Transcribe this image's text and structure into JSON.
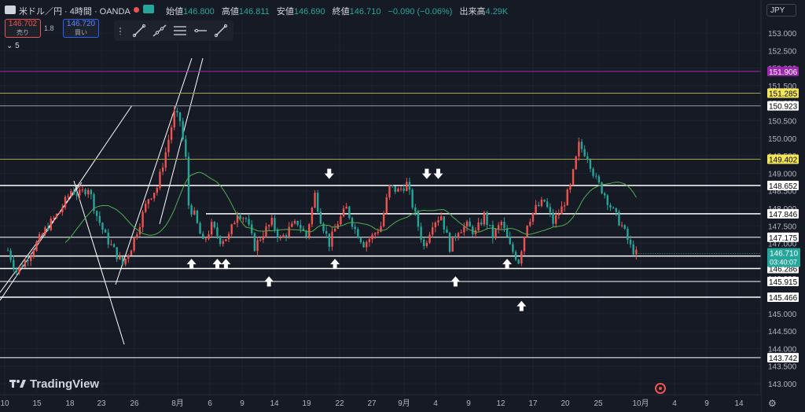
{
  "header": {
    "title": "米ドル／円 · 4時間 · OANDA",
    "open_label": "始値",
    "open_value": "146.800",
    "high_label": "高値",
    "high_value": "146.811",
    "low_label": "安値",
    "low_value": "146.690",
    "close_label": "終値",
    "close_value": "146.710",
    "change_value": "−0.090 (−0.06%)",
    "volume_label": "出来高",
    "volume_value": "4.29K",
    "status_color": "#ef5350",
    "flag_color": "#26a69a"
  },
  "trade": {
    "sell_price": "146.702",
    "sell_label": "売り",
    "spread": "1.8",
    "buy_price": "146.720",
    "buy_label": "買い"
  },
  "indicator_count": "5",
  "currency": "JPY",
  "toolbar": {
    "tools": [
      "trend-line-icon",
      "extended-line-icon",
      "horizontal-lines-icon",
      "ray-icon",
      "info-line-icon"
    ]
  },
  "branding": "TradingView",
  "colors": {
    "background": "#161a25",
    "up": "#ef5350",
    "down": "#26a69a",
    "ma": "#4caf50",
    "axis_text": "#b2b5be",
    "purple_level": "#9c27b0",
    "olive_level": "#a5a33c"
  },
  "chart_data": {
    "type": "candlestick",
    "symbol": "USDJPY",
    "timeframe": "4h",
    "x_ticks": [
      "10",
      "15",
      "18",
      "23",
      "26",
      "8月",
      "6",
      "9",
      "14",
      "19",
      "22",
      "27",
      "9月",
      "4",
      "9",
      "12",
      "17",
      "20",
      "25",
      "10月",
      "4",
      "9",
      "14"
    ],
    "y_axis": {
      "ticks": [
        153.0,
        152.5,
        152.0,
        151.5,
        151.0,
        150.5,
        150.0,
        149.5,
        149.0,
        148.5,
        148.0,
        147.5,
        147.0,
        146.5,
        146.0,
        145.5,
        145.0,
        144.5,
        144.0,
        143.5,
        143.0
      ],
      "range": [
        142.85,
        153.45
      ]
    },
    "horizontal_levels": [
      {
        "value": "151.906",
        "color": "#9c27b0",
        "label_bg": "#9c27b0",
        "label_color": "#ffffff"
      },
      {
        "value": "151.285",
        "color": "#a5a33c",
        "label_bg": "#f3e65b",
        "label_color": "#000000"
      },
      {
        "value": "150.923",
        "color": "#9598a1",
        "label_bg": "#ffffff",
        "label_color": "#000000"
      },
      {
        "value": "149.402",
        "color": "#a5a33c",
        "label_bg": "#f3e65b",
        "label_color": "#000000"
      },
      {
        "value": "148.652",
        "color": "#ffffff",
        "label_bg": "#ffffff",
        "label_color": "#000000"
      },
      {
        "value": "147.846",
        "color": "#ffffff",
        "label_bg": "#ffffff",
        "label_color": "#000000"
      },
      {
        "value": "147.175",
        "color": "#ffffff",
        "label_bg": "#ffffff",
        "label_color": "#000000"
      },
      {
        "value": "146.640",
        "color": "#ffffff",
        "label_bg": "#ffffff",
        "label_color": "#000000"
      },
      {
        "value": "146.286",
        "color": "#ffffff",
        "label_bg": "#ffffff",
        "label_color": "#000000"
      },
      {
        "value": "145.915",
        "color": "#ffffff",
        "label_bg": "#ffffff",
        "label_color": "#000000"
      },
      {
        "value": "145.466",
        "color": "#ffffff",
        "label_bg": "#ffffff",
        "label_color": "#000000"
      },
      {
        "value": "143.742",
        "color": "#ffffff",
        "label_bg": "#ffffff",
        "label_color": "#000000"
      }
    ],
    "current_price": {
      "value": "146.710",
      "countdown": "03:40:07",
      "color": "#26a69a"
    },
    "price_path": [
      [
        0,
        146.8
      ],
      [
        3,
        146.2
      ],
      [
        6,
        146.5
      ],
      [
        10,
        147.0
      ],
      [
        14,
        147.5
      ],
      [
        18,
        147.9
      ],
      [
        22,
        148.5
      ],
      [
        25,
        148.4
      ],
      [
        28,
        148.6
      ],
      [
        31,
        147.8
      ],
      [
        34,
        147.2
      ],
      [
        37,
        146.8
      ],
      [
        40,
        146.4
      ],
      [
        43,
        146.9
      ],
      [
        46,
        147.6
      ],
      [
        49,
        148.3
      ],
      [
        52,
        148.6
      ],
      [
        55,
        149.6
      ],
      [
        58,
        150.7
      ],
      [
        60,
        150.5
      ],
      [
        62,
        149.4
      ],
      [
        63,
        148.1
      ],
      [
        65,
        147.8
      ],
      [
        68,
        147.0
      ],
      [
        71,
        147.5
      ],
      [
        74,
        147.1
      ],
      [
        77,
        147.2
      ],
      [
        80,
        147.9
      ],
      [
        83,
        147.7
      ],
      [
        86,
        146.9
      ],
      [
        89,
        147.3
      ],
      [
        92,
        147.6
      ],
      [
        95,
        147.1
      ],
      [
        98,
        147.4
      ],
      [
        101,
        147.6
      ],
      [
        104,
        147.2
      ],
      [
        107,
        148.4
      ],
      [
        109,
        147.7
      ],
      [
        112,
        147.0
      ],
      [
        115,
        147.6
      ],
      [
        118,
        148.0
      ],
      [
        121,
        147.4
      ],
      [
        124,
        147.0
      ],
      [
        127,
        147.2
      ],
      [
        130,
        147.5
      ],
      [
        133,
        148.6
      ],
      [
        136,
        148.5
      ],
      [
        139,
        148.7
      ],
      [
        142,
        147.8
      ],
      [
        145,
        146.9
      ],
      [
        148,
        147.6
      ],
      [
        151,
        147.8
      ],
      [
        154,
        146.9
      ],
      [
        157,
        147.4
      ],
      [
        160,
        147.5
      ],
      [
        163,
        147.3
      ],
      [
        166,
        147.8
      ],
      [
        169,
        147.2
      ],
      [
        172,
        147.6
      ],
      [
        175,
        146.9
      ],
      [
        178,
        146.5
      ],
      [
        181,
        147.6
      ],
      [
        184,
        148.0
      ],
      [
        187,
        148.2
      ],
      [
        190,
        147.6
      ],
      [
        193,
        148.0
      ],
      [
        196,
        148.6
      ],
      [
        199,
        149.8
      ],
      [
        202,
        149.5
      ],
      [
        205,
        148.8
      ],
      [
        208,
        148.4
      ],
      [
        211,
        147.9
      ],
      [
        214,
        147.5
      ],
      [
        217,
        146.9
      ],
      [
        219,
        146.7
      ]
    ],
    "arrows": [
      {
        "slot": 112,
        "dir": "down",
        "y": 148.95
      },
      {
        "slot": 146,
        "dir": "down",
        "y": 148.95
      },
      {
        "slot": 150,
        "dir": "down",
        "y": 148.95
      },
      {
        "slot": 64,
        "dir": "up",
        "y": 146.45
      },
      {
        "slot": 73,
        "dir": "up",
        "y": 146.45
      },
      {
        "slot": 76,
        "dir": "up",
        "y": 146.45
      },
      {
        "slot": 91,
        "dir": "up",
        "y": 145.95
      },
      {
        "slot": 114,
        "dir": "up",
        "y": 146.45
      },
      {
        "slot": 156,
        "dir": "up",
        "y": 145.95
      },
      {
        "slot": 174,
        "dir": "up",
        "y": 146.45
      },
      {
        "slot": 179,
        "dir": "up",
        "y": 145.25
      }
    ]
  }
}
